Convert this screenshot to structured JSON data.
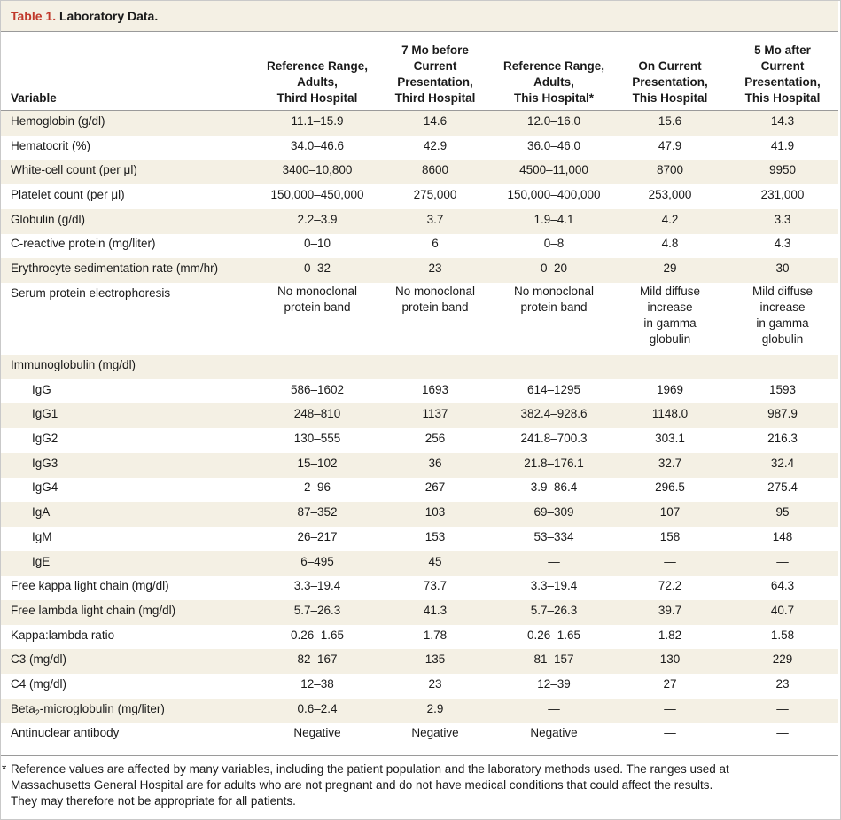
{
  "title": {
    "number": "Table 1.",
    "text": "Laboratory Data."
  },
  "headers": {
    "variable": "Variable",
    "ref_third": [
      "Reference Range,",
      "Adults,",
      "Third Hospital"
    ],
    "before": [
      "7 Mo before",
      "Current",
      "Presentation,",
      "Third Hospital"
    ],
    "ref_this": [
      "Reference Range,",
      "Adults,",
      "This Hospital*"
    ],
    "current": [
      "On Current",
      "Presentation,",
      "This Hospital"
    ],
    "after": [
      "5 Mo after",
      "Current",
      "Presentation,",
      "This Hospital"
    ]
  },
  "rows": [
    {
      "label": "Hemoglobin (g/dl)",
      "values": [
        "11.1–15.9",
        "14.6",
        "12.0–16.0",
        "15.6",
        "14.3"
      ]
    },
    {
      "label": "Hematocrit (%)",
      "values": [
        "34.0–46.6",
        "42.9",
        "36.0–46.0",
        "47.9",
        "41.9"
      ]
    },
    {
      "label": "White-cell count (per μl)",
      "values": [
        "3400–10,800",
        "8600",
        "4500–11,000",
        "8700",
        "9950"
      ]
    },
    {
      "label": "Platelet count (per μl)",
      "values": [
        "150,000–450,000",
        "275,000",
        "150,000–400,000",
        "253,000",
        "231,000"
      ]
    },
    {
      "label": "Globulin (g/dl)",
      "values": [
        "2.2–3.9",
        "3.7",
        "1.9–4.1",
        "4.2",
        "3.3"
      ]
    },
    {
      "label": "C-reactive protein (mg/liter)",
      "values": [
        "0–10",
        "6",
        "0–8",
        "4.8",
        "4.3"
      ]
    },
    {
      "label": "Erythrocyte sedimentation rate (mm/hr)",
      "values": [
        "0–32",
        "23",
        "0–20",
        "29",
        "30"
      ]
    }
  ],
  "spe": {
    "label": "Serum protein electrophoresis",
    "values": [
      [
        "No monoclonal",
        "protein band"
      ],
      [
        "No monoclonal",
        "protein band"
      ],
      [
        "No monoclonal",
        "protein band"
      ],
      [
        "Mild diffuse",
        "increase",
        "in gamma",
        "globulin"
      ],
      [
        "Mild diffuse",
        "increase",
        "in gamma",
        "globulin"
      ]
    ]
  },
  "immuno_label": "Immunoglobulin (mg/dl)",
  "immuno_rows": [
    {
      "label": "IgG",
      "values": [
        "586–1602",
        "1693",
        "614–1295",
        "1969",
        "1593"
      ]
    },
    {
      "label": "IgG1",
      "values": [
        "248–810",
        "1137",
        "382.4–928.6",
        "1148.0",
        "987.9"
      ]
    },
    {
      "label": "IgG2",
      "values": [
        "130–555",
        "256",
        "241.8–700.3",
        "303.1",
        "216.3"
      ]
    },
    {
      "label": "IgG3",
      "values": [
        "15–102",
        "36",
        "21.8–176.1",
        "32.7",
        "32.4"
      ]
    },
    {
      "label": "IgG4",
      "values": [
        "2–96",
        "267",
        "3.9–86.4",
        "296.5",
        "275.4"
      ]
    },
    {
      "label": "IgA",
      "values": [
        "87–352",
        "103",
        "69–309",
        "107",
        "95"
      ]
    },
    {
      "label": "IgM",
      "values": [
        "26–217",
        "153",
        "53–334",
        "158",
        "148"
      ]
    },
    {
      "label": "IgE",
      "values": [
        "6–495",
        "45",
        "—",
        "—",
        "—"
      ]
    }
  ],
  "lower_rows": [
    {
      "label": "Free kappa light chain (mg/dl)",
      "values": [
        "3.3–19.4",
        "73.7",
        "3.3–19.4",
        "72.2",
        "64.3"
      ]
    },
    {
      "label": "Free lambda light chain (mg/dl)",
      "values": [
        "5.7–26.3",
        "41.3",
        "5.7–26.3",
        "39.7",
        "40.7"
      ]
    },
    {
      "label": "Kappa:lambda ratio",
      "values": [
        "0.26–1.65",
        "1.78",
        "0.26–1.65",
        "1.82",
        "1.58"
      ]
    },
    {
      "label": "C3 (mg/dl)",
      "values": [
        "82–167",
        "135",
        "81–157",
        "130",
        "229"
      ]
    },
    {
      "label": "C4 (mg/dl)",
      "values": [
        "12–38",
        "23",
        "12–39",
        "27",
        "23"
      ]
    },
    {
      "label_pre": "Beta",
      "label_sub": "2",
      "label_post": "-microglobulin (mg/liter)",
      "values": [
        "0.6–2.4",
        "2.9",
        "—",
        "—",
        "—"
      ]
    },
    {
      "label": "Antinuclear antibody",
      "values": [
        "Negative",
        "Negative",
        "Negative",
        "—",
        "—"
      ]
    }
  ],
  "footnote": {
    "marker": "*",
    "lines": [
      "Reference values are affected by many variables, including the patient population and the laboratory methods used. The ranges used at",
      "Massachusetts General Hospital are for adults who are not pregnant and do not have medical conditions that could affect the results.",
      "They may therefore not be appropriate for all patients."
    ]
  }
}
